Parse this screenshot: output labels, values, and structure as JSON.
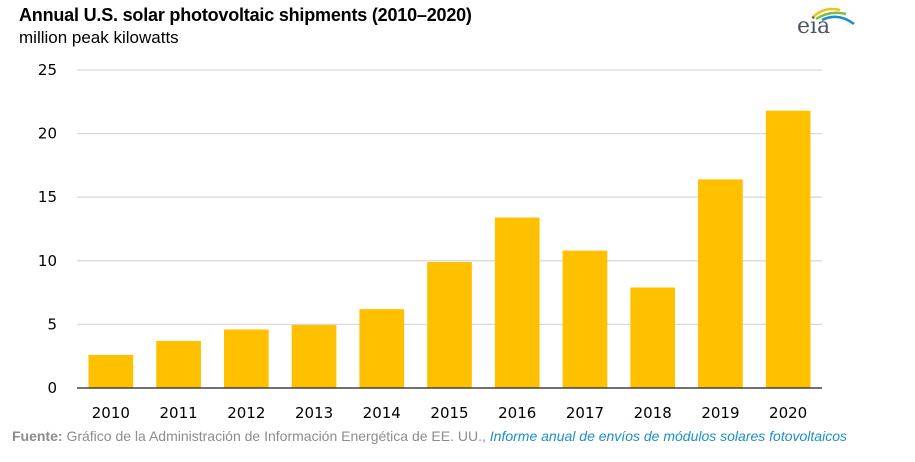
{
  "chart_data": {
    "type": "bar",
    "title": "Annual U.S. solar photovoltaic shipments (2010–2020)",
    "subtitle": "million peak kilowatts",
    "xlabel": "",
    "ylabel": "million peak kilowatts",
    "ylim": [
      0,
      25
    ],
    "yticks": [
      0,
      5,
      10,
      15,
      20,
      25
    ],
    "grid": true,
    "legend": "none",
    "categories": [
      "2010",
      "2011",
      "2012",
      "2013",
      "2014",
      "2015",
      "2016",
      "2017",
      "2018",
      "2019",
      "2020"
    ],
    "values": [
      2.6,
      3.7,
      4.6,
      4.95,
      6.2,
      9.9,
      13.4,
      10.8,
      7.9,
      16.4,
      21.8
    ],
    "bar_color": "#FFC000"
  },
  "logo": {
    "text": "eia"
  },
  "source": {
    "label": "Fuente:",
    "text": " Gráfico de la Administración de Información Energética de EE. UU., ",
    "link": "Informe anual de envíos de módulos solares fotovoltaicos"
  }
}
